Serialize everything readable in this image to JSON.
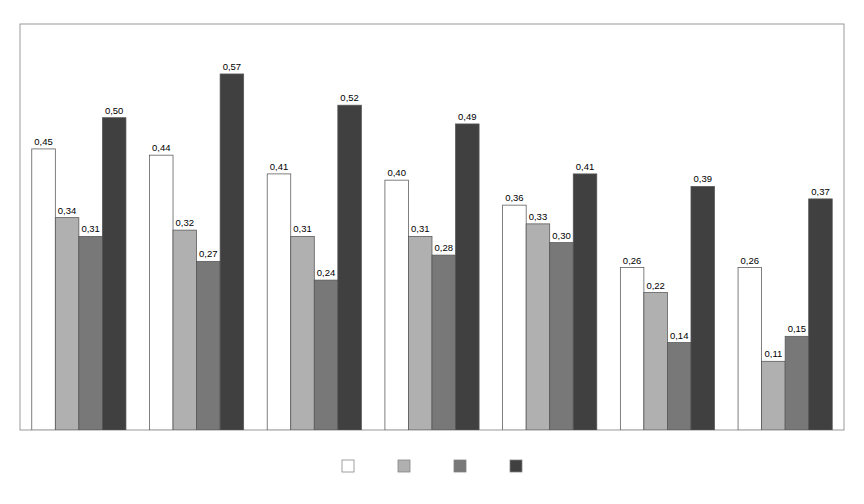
{
  "chart_data": {
    "type": "bar",
    "categories": [
      null,
      null,
      null,
      null,
      null,
      null,
      null
    ],
    "series": [
      {
        "color": "white",
        "values": [
          0.45,
          0.44,
          0.41,
          0.4,
          0.36,
          0.26,
          0.26
        ],
        "value_labels": [
          "0,45",
          "0,44",
          "0,41",
          "0,40",
          "0,36",
          "0,26",
          "0,26"
        ]
      },
      {
        "color": "#b0b0b0",
        "values": [
          0.34,
          0.32,
          0.31,
          0.31,
          0.33,
          0.22,
          0.11
        ],
        "value_labels": [
          "0,34",
          "0,32",
          "0,31",
          "0,31",
          "0,33",
          "0,22",
          "0,11"
        ]
      },
      {
        "color": "#787878",
        "values": [
          0.31,
          0.27,
          0.24,
          0.28,
          0.3,
          0.14,
          0.15
        ],
        "value_labels": [
          "0,31",
          "0,27",
          "0,24",
          "0,28",
          "0,30",
          "0,14",
          "0,15"
        ]
      },
      {
        "color": "#404040",
        "values": [
          0.5,
          0.57,
          0.52,
          0.49,
          0.41,
          0.39,
          0.37
        ],
        "value_labels": [
          "0,50",
          "0,57",
          "0,52",
          "0,49",
          "0,41",
          "0,39",
          "0,37"
        ]
      }
    ],
    "ylim": [
      0,
      0.65
    ],
    "tick_labels": false,
    "data_labels": true,
    "legend": "bottom"
  }
}
